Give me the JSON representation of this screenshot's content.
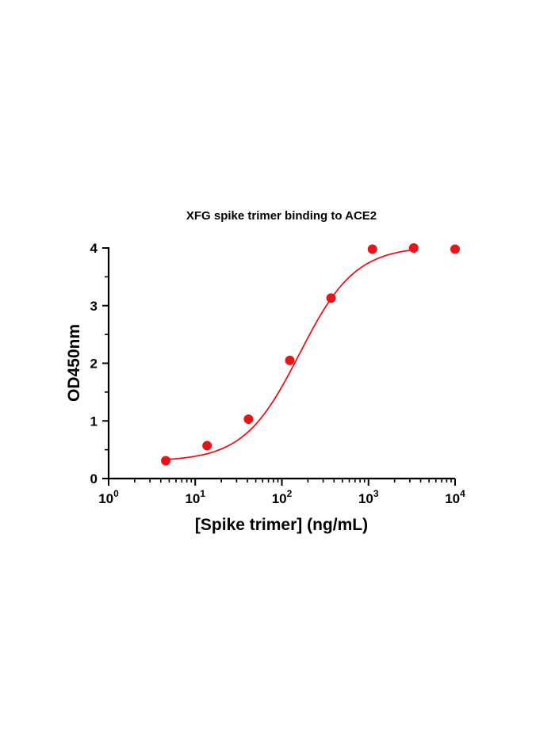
{
  "chart_data": {
    "type": "scatter",
    "title": "XFG spike trimer binding to ACE2",
    "xlabel": "[Spike trimer] (ng/mL)",
    "ylabel": "OD450nm",
    "x_scale": "log10",
    "xlim": [
      1,
      10000
    ],
    "ylim": [
      0,
      4
    ],
    "x_ticks": [
      {
        "base": "10",
        "exp": "0"
      },
      {
        "base": "10",
        "exp": "1"
      },
      {
        "base": "10",
        "exp": "2"
      },
      {
        "base": "10",
        "exp": "3"
      },
      {
        "base": "10",
        "exp": "4"
      }
    ],
    "y_ticks": [
      "0",
      "1",
      "2",
      "3",
      "4"
    ],
    "grid": false,
    "legend": "none",
    "series": [
      {
        "color": "#e8141b",
        "points": [
          {
            "x": 4.57,
            "y": 0.31
          },
          {
            "x": 13.7,
            "y": 0.57
          },
          {
            "x": 41.2,
            "y": 1.03
          },
          {
            "x": 123.5,
            "y": 2.05
          },
          {
            "x": 370,
            "y": 3.13
          },
          {
            "x": 1111,
            "y": 3.98
          },
          {
            "x": 3333,
            "y": 4.0
          },
          {
            "x": 10000,
            "y": 3.98
          }
        ],
        "fit": {
          "model": "4PL",
          "bottom": 0.3,
          "top": 4.03,
          "ec50": 160,
          "hill": 1.35
        }
      }
    ]
  }
}
